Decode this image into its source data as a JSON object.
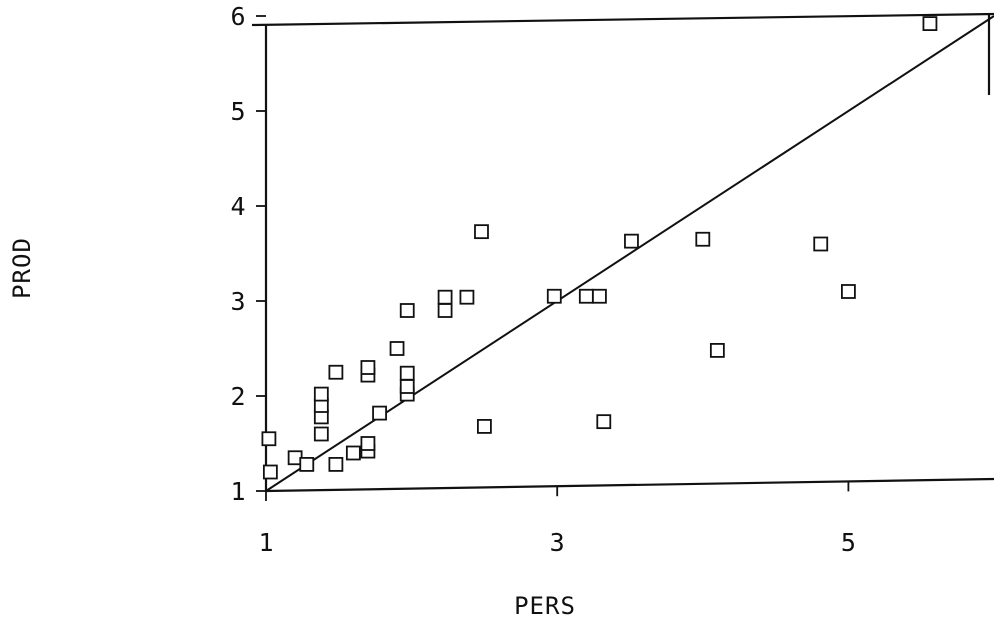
{
  "chart_data": {
    "type": "scatter",
    "title": "",
    "xlabel": "PERS",
    "ylabel": "PROD",
    "xlim": [
      1,
      6
    ],
    "ylim": [
      1,
      6
    ],
    "x_ticks": [
      1,
      3,
      5
    ],
    "y_ticks": [
      1,
      2,
      3,
      4,
      5,
      6
    ],
    "grid": false,
    "reference_line": {
      "from": [
        1,
        1
      ],
      "to": [
        6,
        6
      ]
    },
    "series": [
      {
        "points": [
          {
            "x": 1.02,
            "y": 1.55
          },
          {
            "x": 1.03,
            "y": 1.2
          },
          {
            "x": 1.2,
            "y": 1.35
          },
          {
            "x": 1.28,
            "y": 1.28
          },
          {
            "x": 1.38,
            "y": 1.6
          },
          {
            "x": 1.38,
            "y": 1.78
          },
          {
            "x": 1.38,
            "y": 1.9
          },
          {
            "x": 1.38,
            "y": 2.02
          },
          {
            "x": 1.48,
            "y": 1.28
          },
          {
            "x": 1.48,
            "y": 2.25
          },
          {
            "x": 1.6,
            "y": 1.4
          },
          {
            "x": 1.7,
            "y": 1.42
          },
          {
            "x": 1.7,
            "y": 1.5
          },
          {
            "x": 1.7,
            "y": 2.22
          },
          {
            "x": 1.7,
            "y": 2.3
          },
          {
            "x": 1.78,
            "y": 1.82
          },
          {
            "x": 1.9,
            "y": 2.5
          },
          {
            "x": 1.97,
            "y": 2.9
          },
          {
            "x": 1.97,
            "y": 2.02
          },
          {
            "x": 1.97,
            "y": 2.1
          },
          {
            "x": 1.97,
            "y": 2.24
          },
          {
            "x": 2.23,
            "y": 2.9
          },
          {
            "x": 2.23,
            "y": 3.04
          },
          {
            "x": 2.38,
            "y": 3.04
          },
          {
            "x": 2.48,
            "y": 3.73
          },
          {
            "x": 2.5,
            "y": 1.68
          },
          {
            "x": 2.98,
            "y": 3.05
          },
          {
            "x": 3.2,
            "y": 3.05
          },
          {
            "x": 3.29,
            "y": 3.05
          },
          {
            "x": 3.32,
            "y": 1.73
          },
          {
            "x": 3.51,
            "y": 3.63
          },
          {
            "x": 4.0,
            "y": 3.65
          },
          {
            "x": 4.1,
            "y": 2.48
          },
          {
            "x": 4.81,
            "y": 3.6
          },
          {
            "x": 5.0,
            "y": 3.1
          },
          {
            "x": 5.56,
            "y": 5.92
          }
        ]
      }
    ]
  }
}
